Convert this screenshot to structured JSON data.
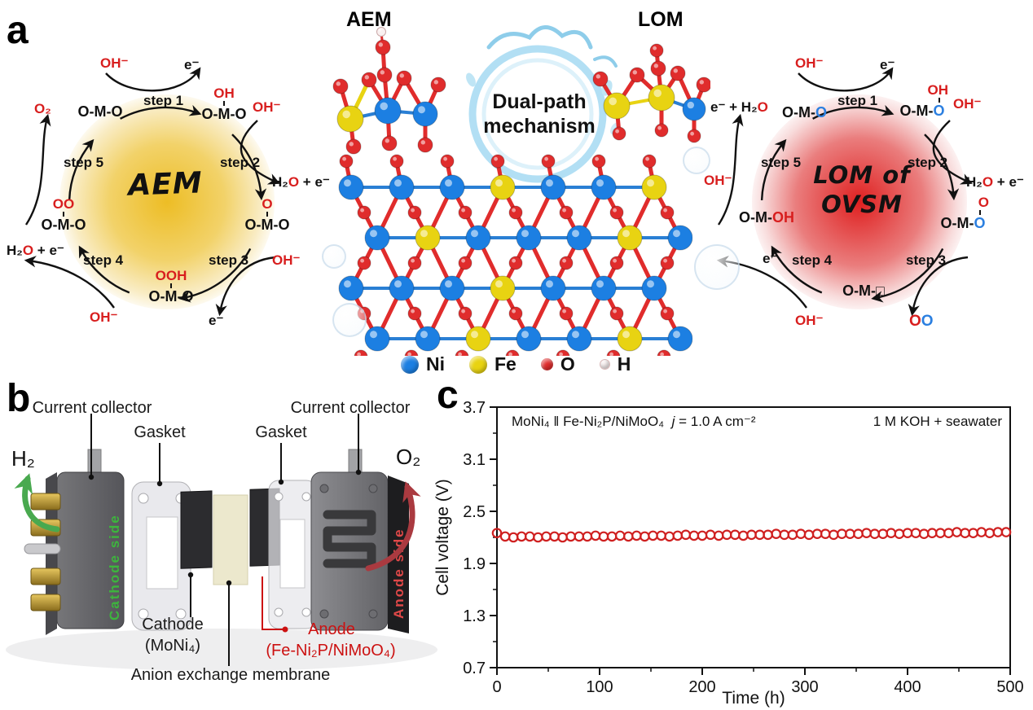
{
  "panel_labels": {
    "a": "a",
    "b": "b",
    "c": "c"
  },
  "center": {
    "aem_tag": "AEM",
    "lom_tag": "LOM",
    "mechanism_l1": "Dual-path",
    "mechanism_l2": "mechanism",
    "atom_colors": {
      "ni": "#1c7fe2",
      "fe": "#e8d312",
      "o": "#e02c2c",
      "h": "#f9f0f0"
    },
    "legend": [
      {
        "label": "Ni"
      },
      {
        "label": "Fe"
      },
      {
        "label": "O"
      },
      {
        "label": "H"
      }
    ]
  },
  "aem": {
    "title": "AEM",
    "steps": [
      "step 1",
      "step 2",
      "step 3",
      "step 4",
      "step 5"
    ],
    "in_top": "OH⁻",
    "out_top": "e⁻",
    "out_tl": "O₂",
    "stateA": "O-M-O",
    "stateB_top": "OH",
    "stateB": "O-M-O",
    "in_right": "OH⁻",
    "h2o_1": "H₂",
    "h2o_2": "O",
    "h2o_3": " + e⁻",
    "stateC_top": "O",
    "stateC": "O-M-O",
    "in_br": "OH⁻",
    "out_br": "e⁻",
    "stateD_top": "OOH",
    "stateD": "O-M-O",
    "in_bottom": "OH⁻",
    "stateE_top": "OO",
    "stateE": "O-M-O"
  },
  "lom": {
    "title_l1": "LOM of",
    "title_l2": "OVSM",
    "steps": [
      "step 1",
      "step 2",
      "step 3",
      "step 4",
      "step 5"
    ],
    "in_top": "OH⁻",
    "out_top": "e⁻",
    "out_tl_1": "e⁻ + H₂",
    "out_tl_2": "O",
    "stateA_1": "O-M-",
    "stateA_2": "O",
    "stateB_top": "OH",
    "stateB_1": "O-M-",
    "stateB_2": "O",
    "in_right": "OH⁻",
    "h2o_1": "H₂",
    "h2o_2": "O",
    "h2o_3": " + e⁻",
    "stateC_top": "O",
    "stateC_1": "O-M-",
    "stateC_2": "O",
    "out_br_1": "O",
    "out_br_2": "O",
    "stateD": "O-M-□",
    "in_bottom": "OH⁻",
    "out_bl": "e⁻",
    "stateE_1": "O-M-",
    "stateE_2": "OH",
    "in_left": "OH⁻"
  },
  "panel_b": {
    "current_collector_left": "Current collector",
    "current_collector_right": "Current collector",
    "gasket_left": "Gasket",
    "gasket_right": "Gasket",
    "h2": "H₂",
    "o2": "O₂",
    "cathode_side": "Cathode side",
    "anode_side": "Anode side",
    "cathode": "Cathode",
    "cathode_material": "(MoNi₄)",
    "anode": "Anode",
    "anode_material": "(Fe-Ni₂P/NiMoO₄)",
    "membrane": "Anion exchange membrane"
  },
  "chart_data": {
    "type": "scatter",
    "title_left": "MoNi₄ ‖ Fe-Ni₂P/NiMoO₄",
    "title_j": "j",
    "title_j_eq": " = 1.0 A cm⁻²",
    "title_right": "1 M KOH + seawater",
    "xlabel": "Time (h)",
    "ylabel": "Cell voltage (V)",
    "xlim": [
      0,
      500
    ],
    "ylim": [
      0.7,
      3.7
    ],
    "xticks": [
      0,
      100,
      200,
      300,
      400,
      500
    ],
    "yticks": [
      0.7,
      1.3,
      1.9,
      2.5,
      3.1,
      3.7
    ],
    "grid": false,
    "legend_position": "none",
    "marker": "open-circle",
    "marker_color": "#cf2020",
    "series": [
      {
        "name": "cell voltage",
        "x": [
          0,
          8,
          16,
          24,
          32,
          40,
          48,
          56,
          64,
          72,
          80,
          88,
          96,
          104,
          112,
          120,
          128,
          136,
          144,
          152,
          160,
          168,
          176,
          184,
          192,
          200,
          208,
          216,
          224,
          232,
          240,
          248,
          256,
          264,
          272,
          280,
          288,
          296,
          304,
          312,
          320,
          328,
          336,
          344,
          352,
          360,
          368,
          376,
          384,
          392,
          400,
          408,
          416,
          424,
          432,
          440,
          448,
          456,
          464,
          472,
          480,
          488,
          496
        ],
        "y": [
          2.25,
          2.21,
          2.2,
          2.21,
          2.21,
          2.2,
          2.21,
          2.21,
          2.2,
          2.21,
          2.21,
          2.21,
          2.22,
          2.21,
          2.21,
          2.22,
          2.21,
          2.22,
          2.21,
          2.22,
          2.22,
          2.21,
          2.22,
          2.23,
          2.22,
          2.22,
          2.23,
          2.22,
          2.23,
          2.23,
          2.22,
          2.23,
          2.23,
          2.23,
          2.24,
          2.23,
          2.23,
          2.24,
          2.23,
          2.24,
          2.24,
          2.23,
          2.24,
          2.24,
          2.24,
          2.25,
          2.24,
          2.24,
          2.25,
          2.24,
          2.25,
          2.25,
          2.24,
          2.25,
          2.25,
          2.25,
          2.26,
          2.25,
          2.25,
          2.26,
          2.25,
          2.26,
          2.26
        ]
      }
    ]
  }
}
